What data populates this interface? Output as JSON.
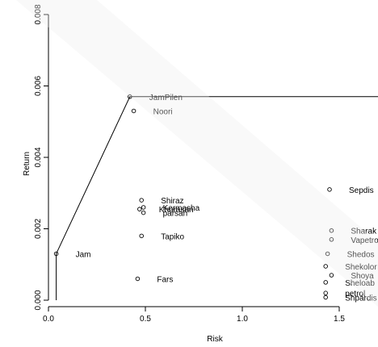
{
  "chart_data": {
    "type": "scatter",
    "title": "",
    "xlabel": "Risk",
    "ylabel": "Return",
    "xlim": [
      0,
      1.7
    ],
    "ylim": [
      0,
      0.008
    ],
    "x_ticks": [
      {
        "v": 0.0,
        "label": "0.0"
      },
      {
        "v": 0.5,
        "label": "0.5"
      },
      {
        "v": 1.0,
        "label": "1.0"
      },
      {
        "v": 1.5,
        "label": "1.5"
      }
    ],
    "y_ticks": [
      {
        "v": 0.0,
        "label": "0.000"
      },
      {
        "v": 0.002,
        "label": "0.002"
      },
      {
        "v": 0.004,
        "label": "0.004"
      },
      {
        "v": 0.006,
        "label": "0.006"
      },
      {
        "v": 0.008,
        "label": "0.008"
      }
    ],
    "grid": false,
    "points": [
      {
        "name": "Jam",
        "x": 0.04,
        "y": 0.0013
      },
      {
        "name": "JamPilen",
        "x": 0.42,
        "y": 0.0057
      },
      {
        "name": "Noori",
        "x": 0.44,
        "y": 0.0053
      },
      {
        "name": "Shiraz",
        "x": 0.48,
        "y": 0.0028
      },
      {
        "name": "Kermasha",
        "x": 0.49,
        "y": 0.0026
      },
      {
        "name": "Khorasan",
        "x": 0.47,
        "y": 0.00255
      },
      {
        "name": "parsan",
        "x": 0.49,
        "y": 0.00245
      },
      {
        "name": "Tapiko",
        "x": 0.48,
        "y": 0.0018
      },
      {
        "name": "Fars",
        "x": 0.46,
        "y": 0.0006
      },
      {
        "name": "Sepdis",
        "x": 1.45,
        "y": 0.0031
      },
      {
        "name": "Sharak",
        "x": 1.46,
        "y": 0.00195
      },
      {
        "name": "Vapetro",
        "x": 1.46,
        "y": 0.0017
      },
      {
        "name": "Shedos",
        "x": 1.44,
        "y": 0.0013
      },
      {
        "name": "Shekolor",
        "x": 1.43,
        "y": 0.00095
      },
      {
        "name": "Shoya",
        "x": 1.46,
        "y": 0.0007
      },
      {
        "name": "Sheloab",
        "x": 1.43,
        "y": 0.0005
      },
      {
        "name": "petrol",
        "x": 1.43,
        "y": 0.0002
      },
      {
        "name": "Shpardis",
        "x": 1.43,
        "y": 8e-05
      }
    ],
    "frontier": [
      {
        "x": 0.04,
        "y": 0.0
      },
      {
        "x": 0.04,
        "y": 0.0013
      },
      {
        "x": 0.42,
        "y": 0.0057
      },
      {
        "x": 1.7,
        "y": 0.0057
      }
    ]
  }
}
